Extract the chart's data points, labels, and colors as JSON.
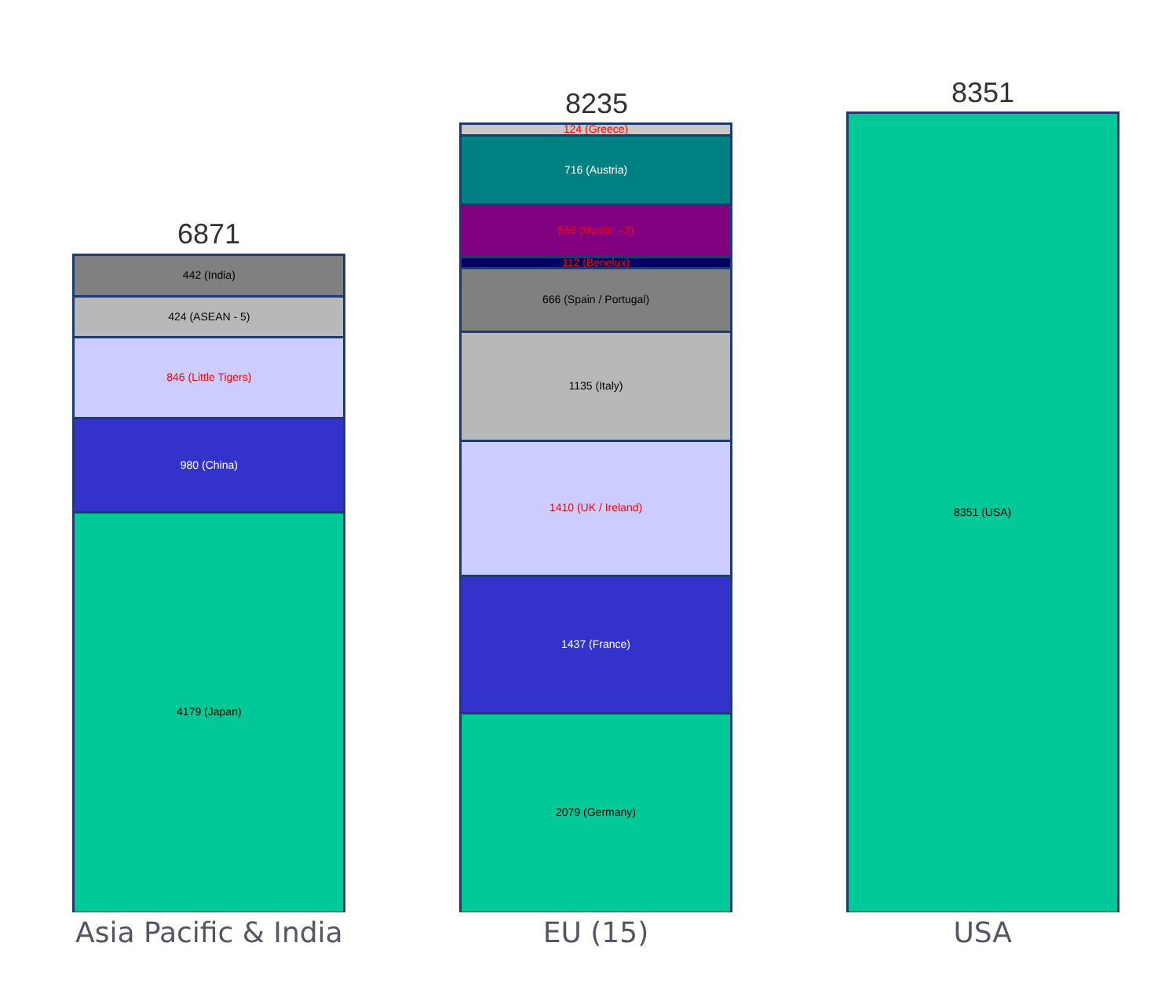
{
  "chart_data": {
    "type": "bar",
    "stacked": true,
    "categories": [
      "Asia Pacific & India",
      "EU (15)",
      "USA"
    ],
    "totals": [
      "6871",
      "8235",
      "8351"
    ],
    "series": [
      {
        "color": "#00c896",
        "values": [
          4179,
          null,
          null
        ],
        "value_labels": [
          "4179 (Japan)",
          null,
          null
        ]
      },
      {
        "color": "#3333cc",
        "values": [
          980,
          null,
          null
        ],
        "value_labels": [
          "980 (China)",
          null,
          null
        ]
      },
      {
        "color": "#ccccff",
        "values": [
          846,
          null,
          null
        ],
        "value_labels": [
          "846 (Little Tigers)",
          null,
          null
        ]
      },
      {
        "color": "#b8b8b8",
        "values": [
          424,
          null,
          null
        ],
        "value_labels": [
          "424 (ASEAN - 5)",
          null,
          null
        ]
      },
      {
        "color": "#808080",
        "values": [
          442,
          null,
          null
        ],
        "value_labels": [
          "442 (India)",
          null,
          null
        ]
      },
      {
        "color": "#00c896",
        "values": [
          null,
          2079,
          null
        ],
        "value_labels": [
          null,
          "2079 (Germany)",
          null
        ]
      },
      {
        "color": "#3333cc",
        "values": [
          null,
          1437,
          null
        ],
        "value_labels": [
          null,
          "1437 (France)",
          null
        ]
      },
      {
        "color": "#ccccff",
        "values": [
          null,
          1410,
          null
        ],
        "value_labels": [
          null,
          "1410 (UK / Ireland)",
          null
        ]
      },
      {
        "color": "#b8b8b8",
        "values": [
          null,
          1135,
          null
        ],
        "value_labels": [
          null,
          "1135 (Italy)",
          null
        ]
      },
      {
        "color": "#808080",
        "values": [
          null,
          666,
          null
        ],
        "value_labels": [
          null,
          "666 (Spain / Portugal)",
          null
        ]
      },
      {
        "color": "#000066",
        "values": [
          null,
          112,
          null
        ],
        "value_labels": [
          null,
          "112 (Benelux)",
          null
        ]
      },
      {
        "color": "#800080",
        "values": [
          null,
          556,
          null
        ],
        "value_labels": [
          null,
          "556 (Nordic - 3)",
          null
        ]
      },
      {
        "color": "#008080",
        "values": [
          null,
          716,
          null
        ],
        "value_labels": [
          null,
          "716 (Austria)",
          null
        ]
      },
      {
        "color": "#c8c8c8",
        "values": [
          null,
          124,
          null
        ],
        "value_labels": [
          null,
          "124 (Greece)",
          null
        ]
      },
      {
        "color": "#00c896",
        "values": [
          null,
          null,
          8351
        ],
        "value_labels": [
          null,
          null,
          "8351 (USA)"
        ]
      }
    ]
  }
}
